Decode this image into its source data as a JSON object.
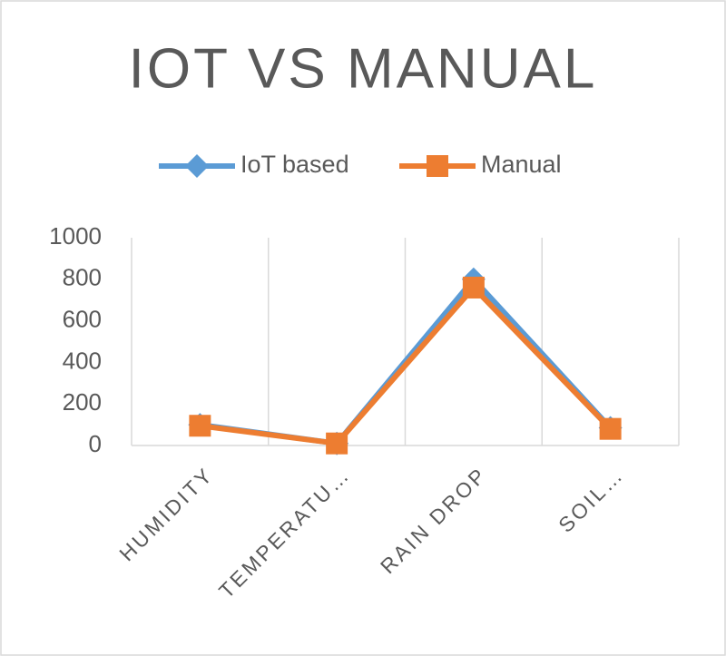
{
  "chart_data": {
    "type": "line",
    "title": "IOT VS MANUAL",
    "categories": [
      "HUMIDITY",
      "TEMPERATU…",
      "RAIN DROP",
      "SOIL…"
    ],
    "series": [
      {
        "name": "IoT based",
        "color": "#5b9bd5",
        "marker": "diamond",
        "values": [
          100,
          10,
          800,
          85
        ]
      },
      {
        "name": "Manual",
        "color": "#ed7d31",
        "marker": "square",
        "values": [
          95,
          10,
          760,
          80
        ]
      }
    ],
    "ylim": [
      0,
      1000
    ],
    "yticks": [
      0,
      200,
      400,
      600,
      800,
      1000
    ],
    "legend": "top"
  }
}
